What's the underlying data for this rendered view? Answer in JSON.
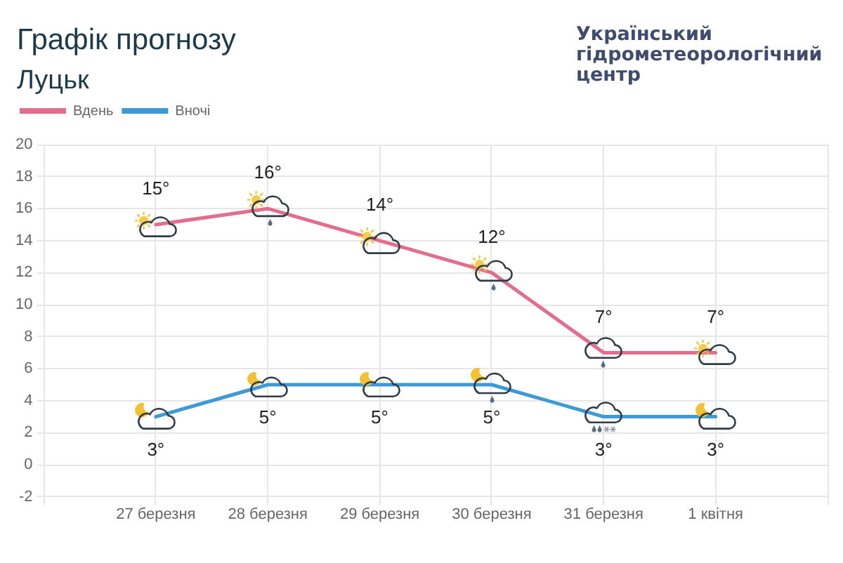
{
  "chart_data": {
    "type": "line",
    "title": "Графік прогнозу",
    "subtitle": "Луцьк",
    "annotations": [
      "Український гідрометеорологічний центр"
    ],
    "categories": [
      null,
      "27 березня",
      "28 березня",
      "29 березня",
      "30 березня",
      "31 березня",
      "1 квітня",
      null
    ],
    "series": [
      {
        "name": "Вдень",
        "color": "#e26d8d",
        "values": [
          null,
          15,
          16,
          14,
          12,
          7,
          7,
          null
        ],
        "value_labels": [
          null,
          "15°",
          "16°",
          "14°",
          "12°",
          "7°",
          "7°",
          null
        ]
      },
      {
        "name": "Вночі",
        "color": "#3e9ad6",
        "values": [
          null,
          3,
          5,
          5,
          5,
          3,
          3,
          null
        ],
        "value_labels": [
          null,
          "3°",
          "5°",
          "5°",
          "5°",
          "3°",
          "3°",
          null
        ]
      }
    ],
    "ylim": [
      -2,
      20
    ],
    "yticks": [
      -2,
      0,
      2,
      4,
      6,
      8,
      10,
      12,
      14,
      16,
      18,
      20
    ],
    "grid": true,
    "legend": "top left",
    "marker": "none"
  }
}
